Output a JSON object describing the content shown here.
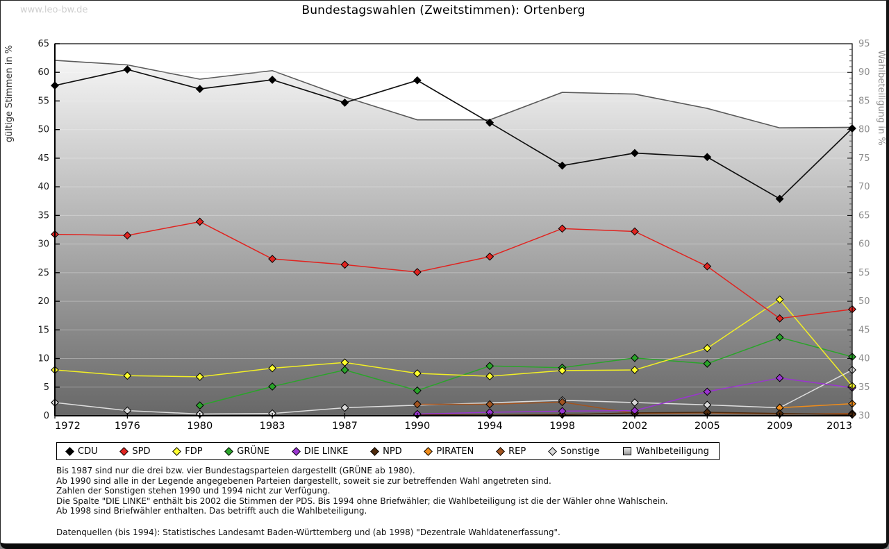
{
  "watermark": "www.leo-bw.de",
  "title": "Bundestagswahlen (Zweitstimmen): Ortenberg",
  "chart_data": {
    "type": "line",
    "x_categories": [
      "1972",
      "1976",
      "1980",
      "1983",
      "1987",
      "1990",
      "1994",
      "1998",
      "2002",
      "2005",
      "2009",
      "2013"
    ],
    "left_axis": {
      "label": "gültige Stimmen in %",
      "min": 0,
      "max": 65,
      "step": 5
    },
    "right_axis": {
      "label": "Wahlbeteiligung in %",
      "min": 30,
      "max": 95,
      "step": 5,
      "minor_step": 1
    },
    "grid": "on",
    "legend_position": "bottom",
    "series": [
      {
        "name": "CDU",
        "axis": "left",
        "style": "line",
        "marker": "diamond",
        "color": "#000000",
        "line_color": "#111111",
        "values": [
          57.7,
          60.5,
          57.1,
          58.7,
          54.7,
          58.6,
          51.2,
          43.7,
          45.9,
          45.2,
          37.9,
          50.2
        ]
      },
      {
        "name": "SPD",
        "axis": "left",
        "style": "line",
        "marker": "diamond",
        "color": "#e02420",
        "line_color": "#e02420",
        "values": [
          31.7,
          31.5,
          33.9,
          27.4,
          26.4,
          25.1,
          27.8,
          32.7,
          32.2,
          26.1,
          17.0,
          18.6
        ]
      },
      {
        "name": "FDP",
        "axis": "left",
        "style": "line",
        "marker": "diamond",
        "color": "#ffff2e",
        "line_color": "#f2ef25",
        "values": [
          8.0,
          7.0,
          6.8,
          8.3,
          9.3,
          7.4,
          6.9,
          7.9,
          8.0,
          11.8,
          20.3,
          5.2
        ]
      },
      {
        "name": "GRÜNE",
        "axis": "left",
        "style": "line",
        "marker": "diamond",
        "color": "#2aa42a",
        "line_color": "#2aa42a",
        "values": [
          null,
          null,
          1.8,
          5.1,
          8.0,
          4.4,
          8.7,
          8.4,
          10.1,
          9.1,
          13.7,
          10.3
        ]
      },
      {
        "name": "DIE LINKE",
        "axis": "left",
        "style": "line",
        "marker": "diamond",
        "color": "#9a35cf",
        "line_color": "#9a35cf",
        "values": [
          null,
          null,
          null,
          null,
          null,
          0.3,
          0.6,
          0.8,
          0.9,
          4.2,
          6.6,
          4.9
        ]
      },
      {
        "name": "NPD",
        "axis": "left",
        "style": "line",
        "marker": "diamond",
        "color": "#4f2a0c",
        "line_color": "#4f2a0c",
        "values": [
          null,
          null,
          null,
          null,
          null,
          0.2,
          0.1,
          0.2,
          0.5,
          0.6,
          0.4,
          0.2
        ]
      },
      {
        "name": "PIRATEN",
        "axis": "left",
        "style": "line",
        "marker": "diamond",
        "color": "#ef8c1a",
        "line_color": "#ef8c1a",
        "values": [
          null,
          null,
          null,
          null,
          null,
          null,
          null,
          null,
          null,
          null,
          1.4,
          2.1
        ]
      },
      {
        "name": "REP",
        "axis": "left",
        "style": "line",
        "marker": "diamond",
        "color": "#a2541f",
        "line_color": "#a2541f",
        "values": [
          null,
          null,
          null,
          null,
          null,
          2.0,
          2.0,
          2.4,
          0.4,
          0.5,
          0.3,
          0.4
        ]
      },
      {
        "name": "Sonstige",
        "axis": "left",
        "style": "line",
        "marker": "diamond",
        "color": "#d9d9d9",
        "line_color": "#dedede",
        "values": [
          2.3,
          0.9,
          0.3,
          0.4,
          1.4,
          null,
          null,
          2.7,
          2.3,
          1.9,
          1.4,
          8.0
        ]
      },
      {
        "name": "Wahlbeteiligung",
        "axis": "right",
        "style": "area",
        "marker": "square",
        "color": "#9a9a9a",
        "line_color": "#5a5a5a",
        "values": [
          92.1,
          91.3,
          88.8,
          90.3,
          85.7,
          81.7,
          81.7,
          86.5,
          86.2,
          83.7,
          80.3,
          80.4
        ]
      }
    ]
  },
  "footnotes": [
    "Bis 1987 sind nur die drei bzw. vier Bundestagsparteien dargestellt (GRÜNE ab 1980).",
    "Ab 1990 sind alle in der Legende angegebenen Parteien dargestellt, soweit sie zur betreffenden Wahl angetreten sind.",
    "Zahlen der Sonstigen stehen 1990 und 1994 nicht zur Verfügung.",
    "Die Spalte \"DIE LINKE\" enthält bis 2002 die Stimmen der PDS. Bis 1994 ohne Briefwähler; die Wahlbeteiligung ist die der Wähler ohne Wahlschein.",
    "Ab 1998 sind Briefwähler enthalten. Das betrifft auch die Wahlbeteiligung."
  ],
  "source": "Datenquellen (bis 1994): Statistisches Landesamt Baden-Württemberg und (ab 1998) \"Dezentrale Wahldatenerfassung\"."
}
